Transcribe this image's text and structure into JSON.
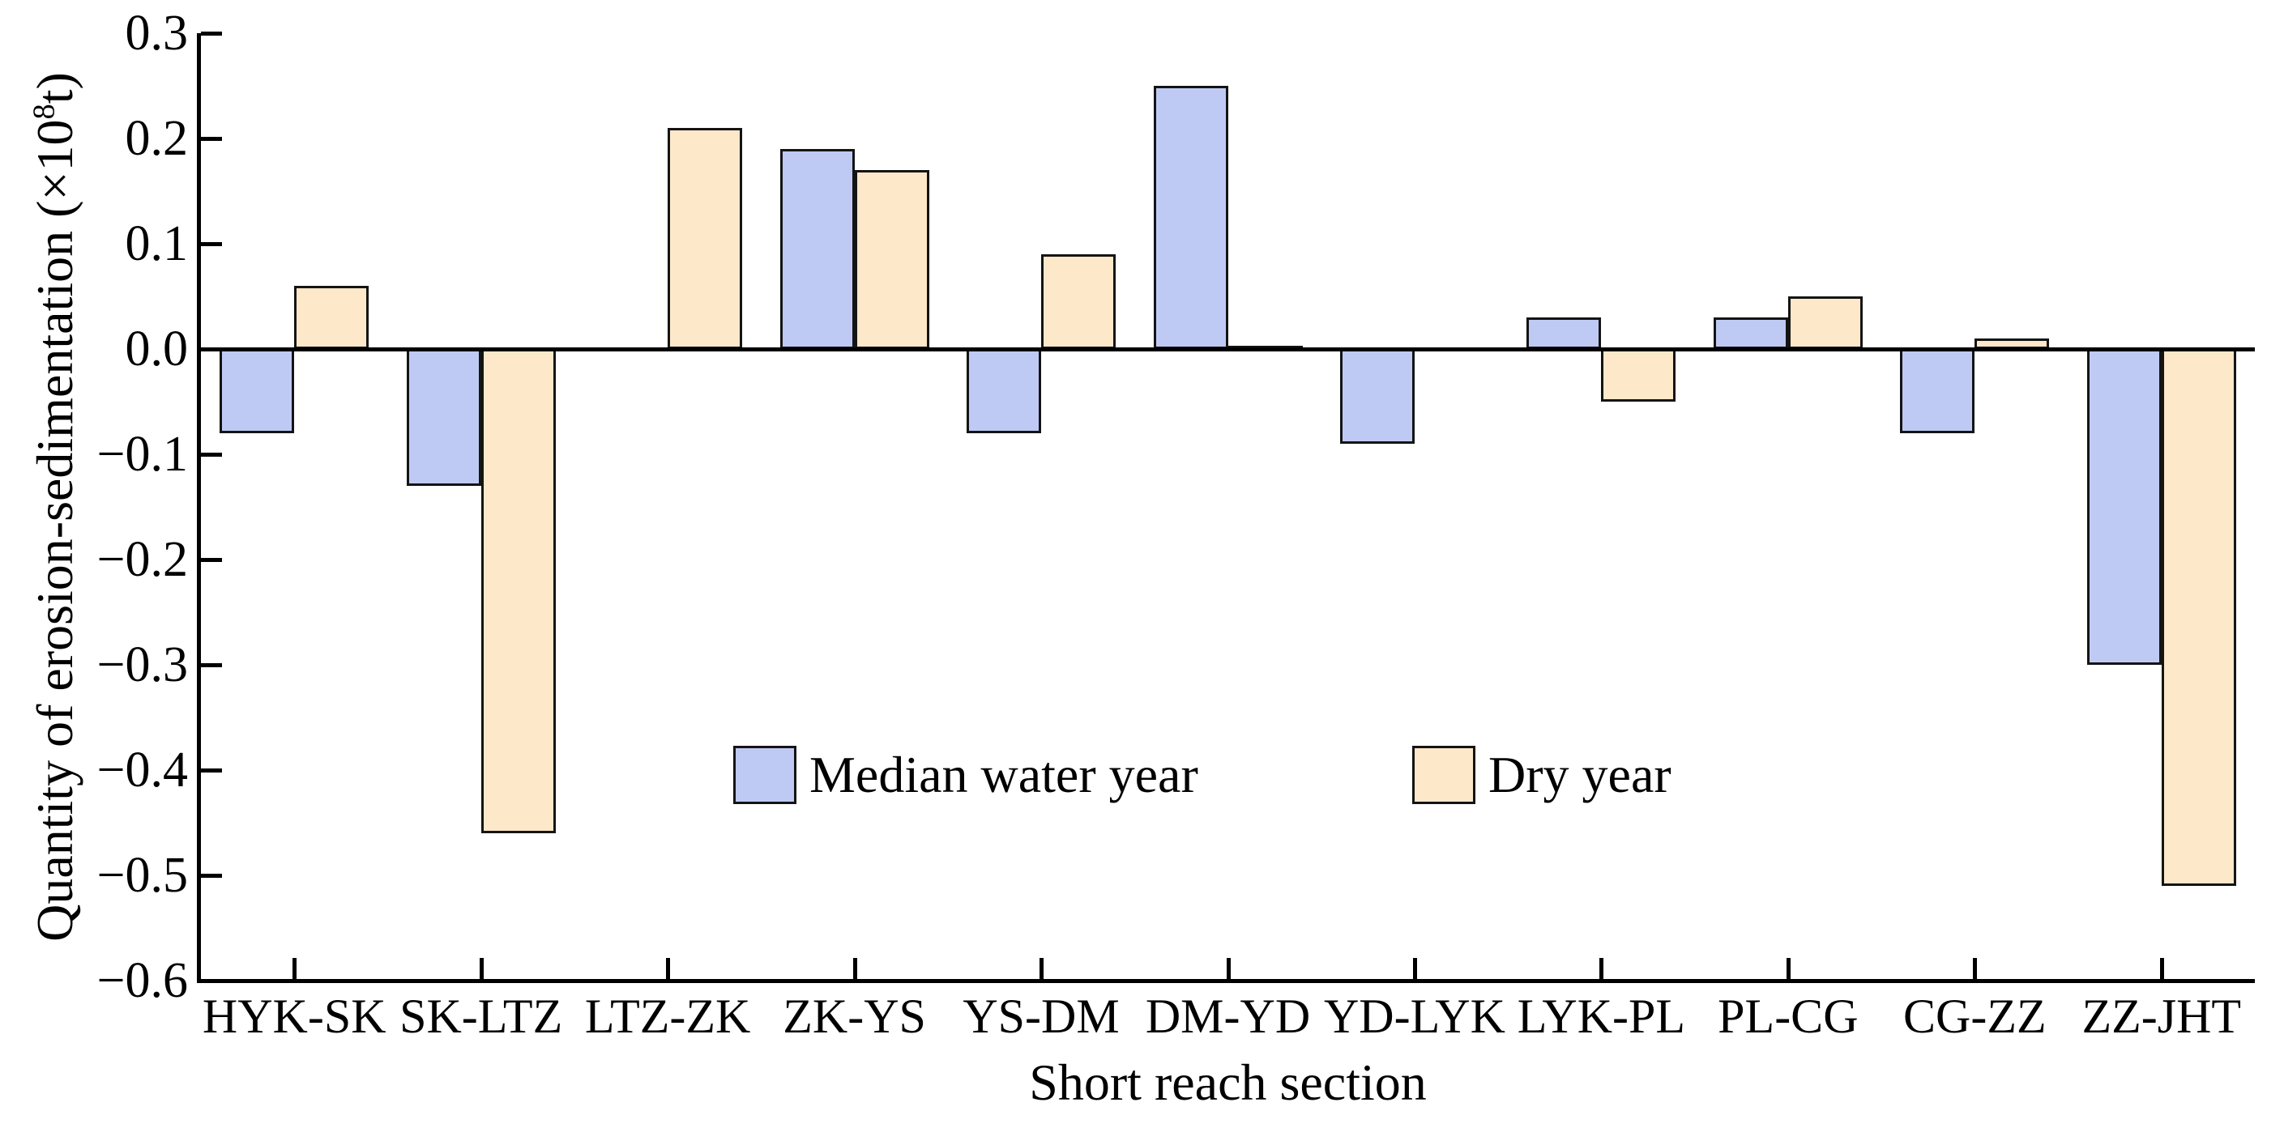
{
  "figure": {
    "background": "#ffffff",
    "axis_color": "#000000"
  },
  "chart_data": {
    "type": "bar",
    "title": "",
    "xlabel": "Short reach section",
    "ylabel": "Quantity of erosion-sedimentation (×10⁸t)",
    "ylabel_parts": {
      "base": "Quantity of erosion-sedimentation (×10",
      "sup": "8",
      "end": "t)"
    },
    "categories": [
      "HYK-SK",
      "SK-LTZ",
      "LTZ-ZK",
      "ZK-YS",
      "YS-DM",
      "DM-YD",
      "YD-LYK",
      "LYK-PL",
      "PL-CG",
      "CG-ZZ",
      "ZZ-JHT"
    ],
    "series": [
      {
        "name": "Median water year",
        "color": "#bfcaf4",
        "border": "#141414",
        "values": [
          -0.08,
          -0.13,
          0,
          0.19,
          -0.08,
          0.25,
          -0.09,
          0.03,
          0.03,
          -0.08,
          -0.3
        ]
      },
      {
        "name": "Dry year",
        "color": "#fde8c9",
        "border": "#141414",
        "values": [
          0.06,
          -0.46,
          0.21,
          0.17,
          0.09,
          0.003,
          0,
          -0.05,
          0.05,
          0.01,
          -0.51
        ]
      }
    ],
    "ylim": [
      -0.6,
      0.3
    ],
    "yticks": [
      0.3,
      0.2,
      0.1,
      0.0,
      -0.1,
      -0.2,
      -0.3,
      -0.4,
      -0.5,
      -0.6
    ],
    "ytick_labels": [
      "0.3",
      "0.2",
      "0.1",
      "0.0",
      "−0.1",
      "−0.2",
      "−0.3",
      "−0.4",
      "−0.5",
      "−0.6"
    ],
    "grid": false,
    "legend_position": "inside-center",
    "legend_entries": [
      "Median water year",
      "Dry year"
    ]
  }
}
